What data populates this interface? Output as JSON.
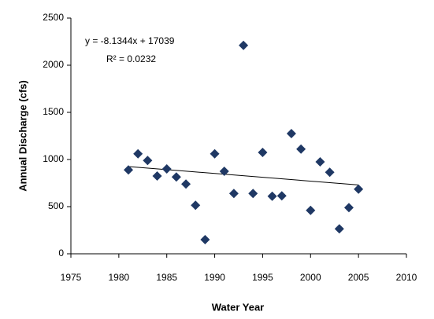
{
  "chart_data": {
    "type": "scatter",
    "x_label": "Water Year",
    "y_label": "Annual Discharge (cfs)",
    "annotations": [
      "y = -8.1344x + 17039",
      "R² = 0.0232"
    ],
    "xlim": [
      1975,
      2010
    ],
    "xticks": [
      1975,
      1980,
      1985,
      1990,
      1995,
      2000,
      2005,
      2010
    ],
    "ylim": [
      0,
      2500
    ],
    "yticks": [
      0,
      500,
      1000,
      1500,
      2000,
      2500
    ],
    "color": "#1f3864",
    "x": [
      1981,
      1982,
      1983,
      1984,
      1985,
      1986,
      1987,
      1988,
      1989,
      1990,
      1991,
      1992,
      1993,
      1994,
      1995,
      1996,
      1997,
      1998,
      1999,
      2000,
      2001,
      2002,
      2003,
      2004,
      2005
    ],
    "values": [
      890,
      1060,
      990,
      825,
      900,
      815,
      740,
      515,
      150,
      1060,
      875,
      640,
      2210,
      640,
      1075,
      610,
      615,
      1275,
      1110,
      460,
      975,
      865,
      265,
      490,
      685
    ],
    "trendline": {
      "x": [
        1981,
        2005
      ],
      "values": [
        925,
        730
      ]
    }
  }
}
